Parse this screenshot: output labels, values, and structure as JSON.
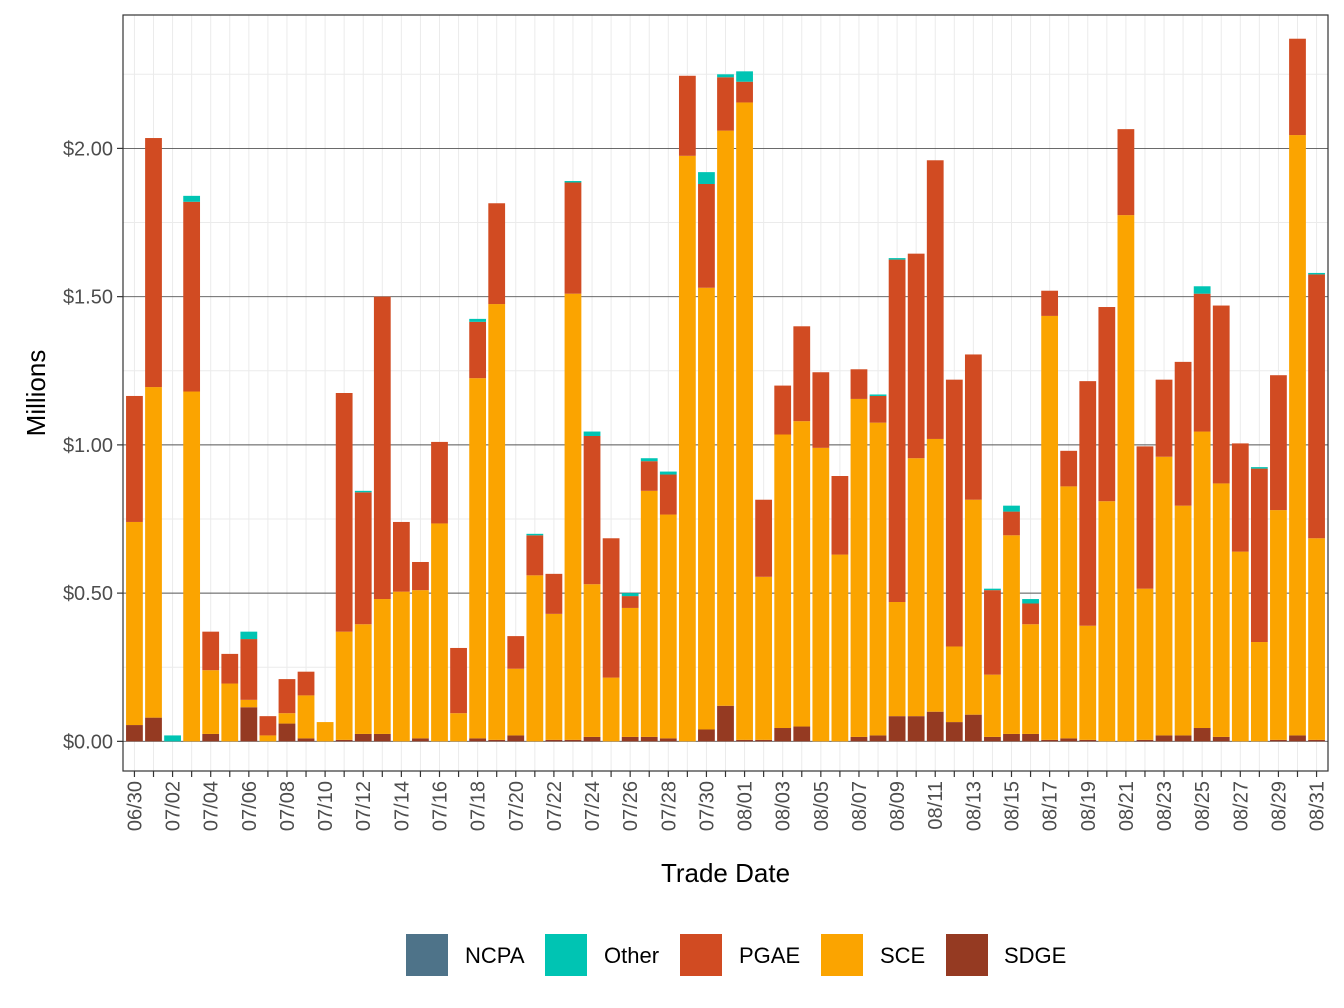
{
  "chart_data": {
    "type": "bar",
    "stacked": true,
    "title": "",
    "xlabel": "Trade Date",
    "ylabel": "Millions",
    "ylim": [
      -0.1,
      2.45
    ],
    "yticks": [
      0,
      0.5,
      1.0,
      1.5,
      2.0
    ],
    "ytick_labels": [
      "$0.00",
      "$0.50",
      "$1.00",
      "$1.50",
      "$2.00"
    ],
    "grid": true,
    "legend_position": "bottom",
    "legend": [
      "NCPA",
      "Other",
      "PGAE",
      "SCE",
      "SDGE"
    ],
    "colors": {
      "NCPA": "#4e7389",
      "Other": "#00c4b3",
      "PGAE": "#d14b22",
      "SCE": "#fba400",
      "SDGE": "#953a22"
    },
    "categories": [
      "06/30",
      "07/01",
      "07/02",
      "07/03",
      "07/04",
      "07/05",
      "07/06",
      "07/07",
      "07/08",
      "07/09",
      "07/10",
      "07/11",
      "07/12",
      "07/13",
      "07/14",
      "07/15",
      "07/16",
      "07/17",
      "07/18",
      "07/19",
      "07/20",
      "07/21",
      "07/22",
      "07/23",
      "07/24",
      "07/25",
      "07/26",
      "07/27",
      "07/28",
      "07/29",
      "07/30",
      "07/31",
      "08/01",
      "08/02",
      "08/03",
      "08/04",
      "08/05",
      "08/06",
      "08/07",
      "08/08",
      "08/09",
      "08/10",
      "08/11",
      "08/12",
      "08/13",
      "08/14",
      "08/15",
      "08/16",
      "08/17",
      "08/18",
      "08/19",
      "08/20",
      "08/21",
      "08/22",
      "08/23",
      "08/24",
      "08/25",
      "08/26",
      "08/27",
      "08/28",
      "08/29",
      "08/30",
      "08/31"
    ],
    "x_tick_labels": [
      "06/30",
      "07/02",
      "07/04",
      "07/06",
      "07/08",
      "07/10",
      "07/12",
      "07/14",
      "07/16",
      "07/18",
      "07/20",
      "07/22",
      "07/24",
      "07/26",
      "07/28",
      "07/30",
      "08/01",
      "08/03",
      "08/05",
      "08/07",
      "08/09",
      "08/11",
      "08/13",
      "08/15",
      "08/17",
      "08/19",
      "08/21",
      "08/23",
      "08/25",
      "08/27",
      "08/29",
      "08/31"
    ],
    "series": [
      {
        "name": "SDGE",
        "values": [
          0.055,
          0.08,
          0,
          0,
          0.025,
          0,
          0.115,
          0,
          0.06,
          0.01,
          0,
          0.005,
          0.025,
          0.025,
          0,
          0.01,
          0,
          0,
          0.01,
          0.005,
          0.02,
          0,
          0.005,
          0.005,
          0.015,
          0,
          0.015,
          0.015,
          0.01,
          0,
          0.04,
          0.12,
          0.005,
          0.005,
          0.045,
          0.05,
          0,
          0,
          0.015,
          0.02,
          0.085,
          0.085,
          0.1,
          0.065,
          0.09,
          0.015,
          0.025,
          0.025,
          0.005,
          0.01,
          0.005,
          0,
          0,
          0.005,
          0.02,
          0.02,
          0.045,
          0.015,
          0,
          0,
          0.005,
          0.02,
          0.005
        ]
      },
      {
        "name": "SCE",
        "values": [
          0.685,
          1.115,
          0,
          1.18,
          0.215,
          0.195,
          0.025,
          0.02,
          0.035,
          0.145,
          0.065,
          0.365,
          0.37,
          0.455,
          0.505,
          0.5,
          0.735,
          0.095,
          1.215,
          1.47,
          0.225,
          0.56,
          0.425,
          1.505,
          0.515,
          0.215,
          0.435,
          0.83,
          0.755,
          1.975,
          1.49,
          1.94,
          2.15,
          0.55,
          0.99,
          1.03,
          0.99,
          0.63,
          1.14,
          1.055,
          0.385,
          0.87,
          0.92,
          0.255,
          0.725,
          0.21,
          0.67,
          0.37,
          1.43,
          0.85,
          0.385,
          0.81,
          1.775,
          0.51,
          0.94,
          0.775,
          1,
          0.855,
          0.64,
          0.335,
          0.775,
          2.025,
          0.68
        ]
      },
      {
        "name": "PGAE",
        "values": [
          0.425,
          0.84,
          0,
          0.64,
          0.13,
          0.1,
          0.205,
          0.065,
          0.115,
          0.08,
          0,
          0.805,
          0.445,
          1.02,
          0.235,
          0.095,
          0.275,
          0.22,
          0.19,
          0.34,
          0.11,
          0.135,
          0.135,
          0.375,
          0.5,
          0.47,
          0.04,
          0.1,
          0.135,
          0.27,
          0.35,
          0.18,
          0.07,
          0.26,
          0.165,
          0.32,
          0.255,
          0.265,
          0.1,
          0.09,
          1.155,
          0.69,
          0.94,
          0.9,
          0.49,
          0.285,
          0.08,
          0.07,
          0.085,
          0.12,
          0.825,
          0.655,
          0.29,
          0.48,
          0.26,
          0.485,
          0.465,
          0.6,
          0.365,
          0.585,
          0.455,
          0.325,
          0.89
        ]
      },
      {
        "name": "Other",
        "values": [
          0,
          0,
          0.02,
          0.02,
          0,
          0,
          0.025,
          0,
          0,
          0,
          0,
          0,
          0.005,
          0,
          0,
          0,
          0,
          0,
          0.01,
          0,
          0,
          0.005,
          0,
          0.005,
          0.015,
          0,
          0.01,
          0.01,
          0.01,
          0,
          0.04,
          0.01,
          0.035,
          0,
          0,
          0,
          0,
          0,
          0,
          0.005,
          0.005,
          0,
          0,
          0,
          0,
          0.005,
          0.02,
          0.015,
          0,
          0,
          0,
          0,
          0,
          0,
          0,
          0,
          0.025,
          0,
          0,
          0.005,
          0,
          0,
          0.005
        ]
      },
      {
        "name": "NCPA",
        "values": [
          0,
          0,
          0,
          0,
          0,
          0,
          0,
          0,
          0,
          0,
          0,
          0,
          0,
          0,
          0,
          0,
          0,
          0,
          0,
          0,
          0,
          0,
          0,
          0,
          0,
          0,
          0,
          0,
          0,
          0,
          0,
          0,
          0,
          0,
          0,
          0,
          0,
          0,
          0,
          0,
          0,
          0,
          0,
          0,
          0,
          0,
          0,
          0,
          0,
          0,
          0,
          0,
          0,
          0,
          0,
          0,
          0,
          0,
          0,
          0,
          0,
          0,
          0
        ]
      }
    ]
  }
}
